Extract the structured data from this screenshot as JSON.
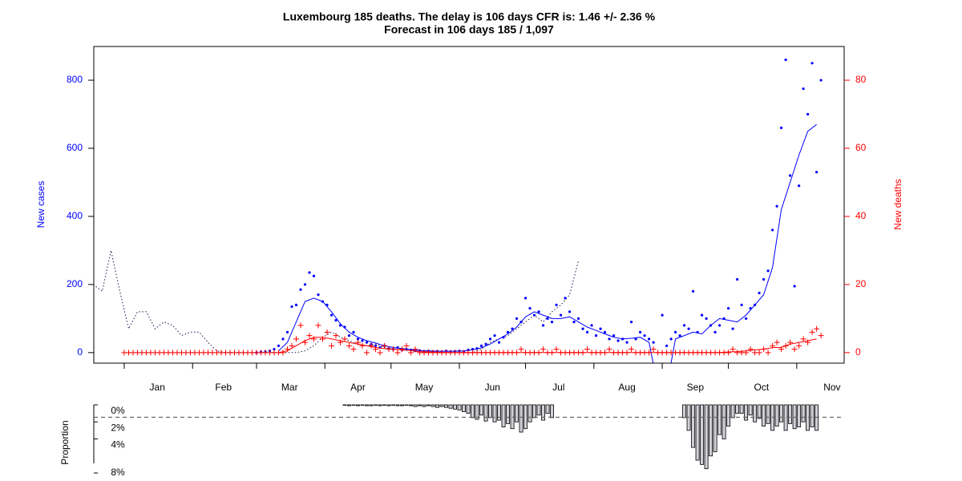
{
  "chart_data": [
    {
      "type": "line",
      "title": "Luxembourg 185 deaths. The delay is 106 days CFR is: 1.46 +/- 2.36 %",
      "subtitle": "Forecast in 106 days 185 / 1,097",
      "ylabel": "New cases",
      "y2label": "New deaths",
      "ylabel_color": "#0000ff",
      "y2label_color": "#ff0000",
      "xlim": [
        -13.8,
        326.5
      ],
      "xticks": [
        {
          "value": 15,
          "label": "Jan"
        },
        {
          "value": 45,
          "label": "Feb"
        },
        {
          "value": 75,
          "label": "Mar"
        },
        {
          "value": 106,
          "label": "Apr"
        },
        {
          "value": 136,
          "label": "May"
        },
        {
          "value": 167,
          "label": "Jun"
        },
        {
          "value": 197,
          "label": "Jul"
        },
        {
          "value": 228,
          "label": "Aug"
        },
        {
          "value": 259,
          "label": "Sep"
        },
        {
          "value": 289,
          "label": "Oct"
        },
        {
          "value": 321,
          "label": "Nov"
        }
      ],
      "xticks_minor": [
        0,
        31,
        60,
        91,
        121,
        152,
        182,
        213,
        244,
        274,
        305
      ],
      "ylim": [
        -31,
        899
      ],
      "yticks": [
        0,
        200,
        400,
        600,
        800
      ],
      "y2lim": [
        -3.1,
        89.9
      ],
      "y2ticks": [
        0,
        20,
        40,
        60,
        80
      ],
      "x": [
        0,
        2,
        4,
        6,
        8,
        10,
        12,
        14,
        16,
        18,
        20,
        22,
        24,
        26,
        28,
        30,
        32,
        34,
        36,
        38,
        40,
        42,
        44,
        46,
        48,
        50,
        52,
        54,
        56,
        58,
        60,
        62,
        64,
        66,
        68,
        70,
        72,
        74,
        76,
        78,
        80,
        82,
        84,
        86,
        88,
        90,
        92,
        94,
        96,
        98,
        100,
        102,
        104,
        106,
        108,
        110,
        112,
        114,
        116,
        118,
        120,
        122,
        124,
        126,
        128,
        130,
        132,
        134,
        136,
        138,
        140,
        142,
        144,
        146,
        148,
        150,
        152,
        154,
        156,
        158,
        160,
        162,
        164,
        166,
        168,
        170,
        172,
        174,
        176,
        178,
        180,
        182,
        184,
        186,
        188,
        190,
        192,
        194,
        196,
        198,
        200,
        202,
        204,
        206,
        208,
        210,
        212,
        214,
        216,
        218,
        220,
        222,
        224,
        226,
        228,
        230,
        232,
        234,
        236,
        238,
        240,
        242,
        244,
        246,
        248,
        250,
        252,
        254,
        256,
        258,
        260,
        262,
        264,
        266,
        268,
        270,
        272,
        274,
        276,
        278,
        280,
        282,
        284,
        286,
        288,
        290,
        292,
        294,
        296,
        298,
        300,
        302,
        304,
        306,
        308,
        310,
        312,
        314,
        316
      ],
      "series": [
        {
          "style": "dotted",
          "color": "#1a1a4d",
          "x": [
            -14,
            -10,
            -6,
            -2,
            2,
            6,
            10,
            14,
            18,
            22,
            26,
            30,
            34,
            38,
            42,
            46,
            50,
            54,
            58,
            62,
            66,
            70,
            74,
            78,
            82,
            86,
            90,
            94,
            98,
            102,
            106,
            110,
            114,
            118,
            122,
            126,
            130,
            134,
            138,
            142,
            146,
            150,
            154,
            158,
            162,
            166,
            170,
            174,
            178,
            182,
            186,
            190,
            194,
            198,
            202,
            206
          ],
          "values": [
            200,
            180,
            300,
            180,
            70,
            120,
            120,
            70,
            90,
            80,
            50,
            60,
            60,
            30,
            5,
            0,
            0,
            0,
            0,
            0,
            0,
            0,
            0,
            0,
            5,
            20,
            45,
            60,
            45,
            35,
            25,
            20,
            25,
            15,
            10,
            8,
            5,
            3,
            2,
            1,
            0,
            0,
            0,
            0,
            10,
            30,
            40,
            50,
            70,
            90,
            110,
            90,
            120,
            140,
            170,
            270
          ]
        },
        {
          "style": "points",
          "color": "#0000ff",
          "values": [
            null,
            null,
            null,
            null,
            null,
            null,
            null,
            null,
            null,
            null,
            null,
            null,
            null,
            null,
            null,
            null,
            null,
            null,
            null,
            null,
            null,
            null,
            null,
            null,
            null,
            null,
            null,
            null,
            null,
            null,
            0,
            2,
            3,
            5,
            10,
            20,
            40,
            60,
            135,
            140,
            185,
            200,
            235,
            225,
            170,
            150,
            140,
            110,
            95,
            80,
            75,
            50,
            60,
            40,
            35,
            30,
            25,
            20,
            15,
            20,
            12,
            10,
            15,
            8,
            10,
            8,
            5,
            6,
            4,
            5,
            3,
            4,
            2,
            5,
            3,
            4,
            5,
            3,
            8,
            10,
            12,
            20,
            25,
            40,
            50,
            30,
            45,
            60,
            70,
            100,
            90,
            160,
            130,
            110,
            120,
            80,
            100,
            90,
            140,
            110,
            160,
            120,
            90,
            100,
            70,
            60,
            80,
            50,
            70,
            60,
            40,
            50,
            35,
            40,
            30,
            90,
            40,
            60,
            50,
            40,
            30,
            null,
            110,
            20,
            40,
            60,
            50,
            80,
            70,
            180,
            60,
            110,
            100,
            80,
            60,
            80,
            100,
            130,
            70,
            215,
            140,
            100,
            130,
            140,
            175,
            215,
            240,
            360,
            430,
            660,
            860,
            520,
            195,
            490,
            775,
            700,
            850,
            530,
            800
          ]
        },
        {
          "style": "line",
          "color": "#0000ff",
          "x": [
            70,
            74,
            78,
            82,
            86,
            90,
            94,
            98,
            102,
            106,
            110,
            114,
            118,
            122,
            126,
            130,
            134,
            138,
            142,
            146,
            150,
            154,
            158,
            162,
            166,
            170,
            174,
            178,
            182,
            186,
            190,
            194,
            198,
            202,
            206,
            210,
            214,
            218,
            222,
            226,
            230,
            234,
            238,
            242,
            246,
            250,
            254,
            258,
            262,
            266,
            270,
            274,
            278,
            282,
            286,
            290,
            294,
            298,
            302,
            306,
            310,
            314
          ],
          "values": [
            5,
            30,
            90,
            150,
            160,
            150,
            120,
            85,
            60,
            45,
            35,
            28,
            20,
            15,
            12,
            9,
            6,
            5,
            4,
            4,
            4,
            5,
            8,
            14,
            25,
            40,
            55,
            75,
            105,
            120,
            110,
            100,
            100,
            105,
            90,
            75,
            65,
            55,
            45,
            40,
            42,
            45,
            30,
            -100,
            -100,
            40,
            50,
            60,
            55,
            80,
            100,
            95,
            90,
            110,
            140,
            170,
            250,
            420,
            500,
            580,
            650,
            670
          ]
        },
        {
          "style": "plus",
          "color": "#ff0000",
          "axis": "y2",
          "values": [
            0,
            0,
            0,
            0,
            0,
            0,
            0,
            0,
            0,
            0,
            0,
            0,
            0,
            0,
            0,
            0,
            0,
            0,
            0,
            0,
            0,
            0,
            0,
            0,
            0,
            0,
            0,
            0,
            0,
            0,
            0,
            0,
            0,
            0,
            0,
            0,
            0,
            1,
            2,
            4,
            8,
            3,
            5,
            4,
            8,
            4,
            6,
            2,
            5,
            3,
            4,
            2,
            1,
            3,
            2,
            0,
            2,
            1,
            0,
            2,
            1,
            1,
            0,
            1,
            2,
            0,
            1,
            0,
            0,
            0,
            0,
            0,
            0,
            0,
            0,
            0,
            0,
            0,
            0,
            0,
            0,
            0,
            0,
            0,
            0,
            0,
            0,
            0,
            0,
            0,
            1,
            0,
            0,
            0,
            0,
            1,
            0,
            0,
            1,
            0,
            0,
            0,
            0,
            0,
            0,
            1,
            0,
            0,
            0,
            0,
            1,
            0,
            0,
            0,
            0,
            1,
            0,
            0,
            0,
            0,
            1,
            0,
            0,
            0,
            0,
            0,
            0,
            0,
            0,
            0,
            0,
            0,
            0,
            0,
            0,
            0,
            0,
            0,
            1,
            0,
            0,
            0,
            1,
            0,
            0,
            1,
            0,
            2,
            3,
            1,
            2,
            3,
            1,
            2,
            4,
            3,
            6,
            7,
            5
          ]
        },
        {
          "style": "line",
          "color": "#ff0000",
          "axis": "y2",
          "x": [
            70,
            74,
            78,
            82,
            86,
            90,
            94,
            98,
            102,
            106,
            110,
            114,
            118,
            122,
            126,
            130,
            134,
            138,
            142,
            146,
            150,
            154,
            158,
            162,
            166,
            170,
            174,
            178,
            182,
            186,
            190,
            194,
            198,
            202,
            206,
            210,
            214,
            218,
            222,
            226,
            230,
            234,
            238,
            242,
            246,
            250,
            254,
            258,
            262,
            266,
            270,
            274,
            278,
            282,
            286,
            290,
            294,
            298,
            302,
            306,
            310,
            314
          ],
          "values": [
            0,
            0.5,
            2,
            3.5,
            4.5,
            4.5,
            4,
            3.5,
            3,
            2.5,
            2,
            1.5,
            1.2,
            1,
            0.8,
            0.6,
            0.3,
            0.2,
            0.1,
            0,
            0,
            0,
            0,
            0,
            0,
            0,
            0,
            0,
            0,
            0,
            0,
            0,
            0,
            0,
            0,
            0,
            0,
            0,
            0,
            0,
            0,
            0,
            0,
            0,
            0,
            0,
            0,
            0,
            0,
            0,
            0,
            0.2,
            0.3,
            0.5,
            0.8,
            1,
            1.5,
            1.5,
            2.5,
            3,
            3.5,
            4
          ]
        }
      ]
    },
    {
      "type": "bar",
      "ylabel": "Proportion",
      "xlim": [
        -13.8,
        326.5
      ],
      "ylim": [
        0,
        8
      ],
      "yreverse": true,
      "yticks": [
        {
          "value": 0,
          "label": "0%"
        },
        {
          "value": 2,
          "label": "2%"
        },
        {
          "value": 4,
          "label": "4%"
        },
        {
          "value": 8,
          "label": "8%"
        }
      ],
      "hline": 1.46,
      "color": "#d0d0d8",
      "x": [
        100,
        102,
        104,
        106,
        108,
        110,
        112,
        114,
        116,
        118,
        120,
        122,
        124,
        126,
        128,
        130,
        132,
        134,
        136,
        138,
        140,
        142,
        144,
        146,
        148,
        150,
        152,
        154,
        156,
        158,
        160,
        162,
        164,
        166,
        168,
        170,
        172,
        174,
        176,
        178,
        180,
        182,
        184,
        186,
        188,
        190,
        192,
        194,
        196,
        198,
        200,
        202,
        204,
        206,
        208,
        210,
        212,
        214,
        216,
        218,
        220,
        222,
        224,
        226,
        228,
        230,
        232,
        234,
        236,
        238,
        240,
        242,
        244,
        246,
        248,
        250,
        252,
        254,
        256,
        258,
        260,
        262,
        264,
        266,
        268,
        270,
        272,
        274,
        276,
        278,
        280,
        282,
        284,
        286,
        288,
        290,
        292,
        294,
        296,
        298,
        300,
        302,
        304,
        306,
        308,
        310,
        312,
        314
      ],
      "values": [
        0.05,
        0.1,
        0.05,
        0.1,
        0.05,
        0.1,
        0.1,
        0.05,
        0.1,
        0.05,
        0.1,
        0.05,
        0.1,
        0.1,
        0.05,
        0.1,
        0.2,
        0.1,
        0.2,
        0.1,
        0.2,
        0.3,
        0.2,
        0.3,
        0.4,
        0.5,
        0.6,
        0.8,
        1.0,
        1.5,
        1.7,
        1.2,
        1.9,
        1.5,
        2.0,
        1.8,
        2.6,
        2.2,
        2.8,
        2.0,
        3.2,
        2.8,
        2.0,
        1.5,
        1.2,
        1.8,
        1.0,
        1.5,
        null,
        null,
        null,
        null,
        null,
        null,
        null,
        null,
        null,
        null,
        null,
        null,
        null,
        null,
        null,
        null,
        null,
        null,
        null,
        null,
        null,
        null,
        null,
        null,
        null,
        null,
        null,
        null,
        null,
        1.5,
        3.0,
        5.0,
        6.5,
        7.0,
        7.5,
        6.0,
        5.5,
        3.5,
        4.0,
        2.5,
        1.5,
        1.0,
        1.0,
        1.8,
        1.2,
        2.0,
        1.6,
        2.5,
        2.2,
        3.0,
        2.5,
        2.0,
        3.0,
        2.2,
        2.8,
        2.6,
        2.0,
        3.0,
        2.6,
        3.0
      ]
    }
  ]
}
